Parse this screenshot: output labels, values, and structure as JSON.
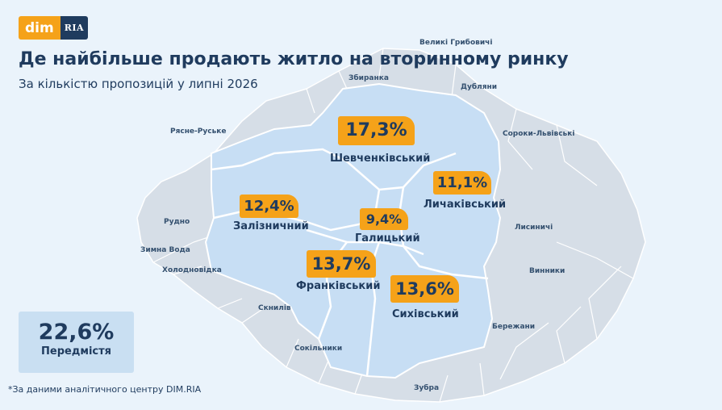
{
  "brand": {
    "dim": "dim",
    "ria": "RIA"
  },
  "title": "Де найбільше продають житло на вторинному ринку",
  "subtitle": "За кількістю пропозицій у липні 2026",
  "districts": {
    "shevchenkivskyi": {
      "name": "Шевченківський",
      "share": "17,3%"
    },
    "lychakivskyi": {
      "name": "Личаківський",
      "share": "11,1%"
    },
    "zaliznychnyi": {
      "name": "Залізничний",
      "share": "12,4%"
    },
    "halytskyi": {
      "name": "Галицький",
      "share": "9,4%"
    },
    "frankivskyi": {
      "name": "Франківський",
      "share": "13,7%"
    },
    "sykhivskyi": {
      "name": "Сихівський",
      "share": "13,6%"
    }
  },
  "suburbs": {
    "share": "22,6%",
    "name": "Передмістя"
  },
  "places": {
    "velyki_hrybovychi": "Великі Грибовичі",
    "zbyranka": "Збиранка",
    "dubliany": "Дубляни",
    "riasne_ruske": "Рясне-Руське",
    "soroky_lvivski": "Сороки-Львівські",
    "rudno": "Рудно",
    "lysynychi": "Лисиничі",
    "zymna_voda": "Зимна Вода",
    "kholodnovidka": "Холодновідка",
    "vynnyky": "Винники",
    "sknyliv": "Скнилів",
    "berezhany": "Бережани",
    "sokilnyky": "Сокільники",
    "zubra": "Зубра"
  },
  "footnote": "*За даними аналітичного центру DIM.RIA",
  "colors": {
    "background": "#eaf3fb",
    "suburb_area": "#d6dee7",
    "city_area": "#c7def4",
    "city_border": "#ffffff",
    "badge": "#f5a219",
    "text_dark": "#1f3b5e"
  }
}
